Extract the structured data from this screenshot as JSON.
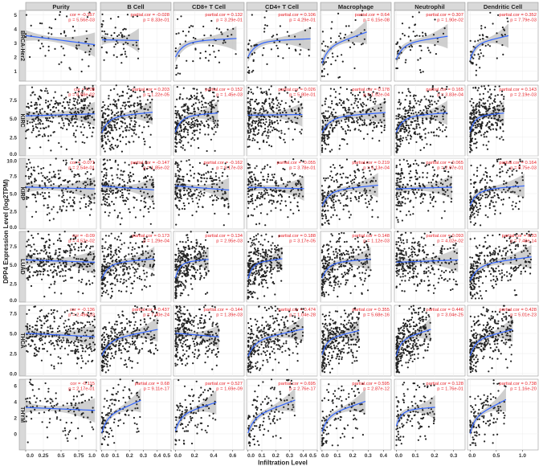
{
  "chart_data": {
    "type": "scatter",
    "ylabel": "DPP4 Expression Level (log2TPM)",
    "xlabel": "Infiltration Level",
    "grid": true,
    "columns": [
      {
        "name": "Purity",
        "xlim": [
          0,
          1
        ],
        "ticks": [
          "0.0",
          "0.25",
          "0.5",
          "0.75",
          "1.0"
        ],
        "tickvals": [
          0,
          0.25,
          0.5,
          0.75,
          1.0
        ]
      },
      {
        "name": "B Cell",
        "xlim": [
          -0.01,
          0.5
        ],
        "ticks": [
          "0.0",
          "0.1",
          "0.2",
          "0.3",
          "0.4",
          "0.5"
        ],
        "tickvals": [
          0,
          0.1,
          0.2,
          0.3,
          0.4,
          0.5
        ]
      },
      {
        "name": "CD8+ T Cell",
        "xlim": [
          -0.02,
          0.72
        ],
        "ticks": [
          "0.0",
          "0.2",
          "0.4",
          "0.6"
        ],
        "tickvals": [
          0,
          0.2,
          0.4,
          0.6
        ]
      },
      {
        "name": "CD4+ T Cell",
        "xlim": [
          -0.01,
          0.5
        ],
        "ticks": [
          "0.0",
          "0.1",
          "0.2",
          "0.3",
          "0.4",
          "0.5"
        ],
        "tickvals": [
          0,
          0.1,
          0.2,
          0.3,
          0.4,
          0.5
        ]
      },
      {
        "name": "Macrophage",
        "xlim": [
          -0.01,
          0.45
        ],
        "ticks": [
          "0.0",
          "0.1",
          "0.2",
          "0.3",
          "0.4"
        ],
        "tickvals": [
          0,
          0.1,
          0.2,
          0.3,
          0.4
        ]
      },
      {
        "name": "Neutrophil",
        "xlim": [
          -0.01,
          0.36
        ],
        "ticks": [
          "0.0",
          "0.1",
          "0.2",
          "0.3"
        ],
        "tickvals": [
          0,
          0.1,
          0.2,
          0.3
        ]
      },
      {
        "name": "Dendritic Cell",
        "xlim": [
          -0.05,
          1.3
        ],
        "ticks": [
          "0.0",
          "0.5",
          "1.0"
        ],
        "tickvals": [
          0,
          0.5,
          1.0
        ]
      }
    ],
    "rows": [
      {
        "name": "BRCA-Her2",
        "ylim": [
          0.3,
          5.3
        ],
        "ticks": [
          "1",
          "2",
          "3",
          "4",
          "5"
        ],
        "tickvals": [
          1,
          2,
          3,
          4,
          5
        ],
        "stats": [
          [
            "cor = -0.357",
            "p = 5.56e-03"
          ],
          [
            "partial.cor = -0.028",
            "p = 8.33e-01"
          ],
          [
            "partial.cor = 0.132",
            "p = 3.29e-01"
          ],
          [
            "partial.cor = 0.106",
            "p = 4.29e-01"
          ],
          [
            "partial.cor = 0.64",
            "p = 6.15e-08"
          ],
          [
            "partial.cor = 0.307",
            "p = 1.90e-02"
          ],
          [
            "partial.cor = 0.352",
            "p = 7.79e-03"
          ]
        ]
      },
      {
        "name": "KIRC",
        "ylim": [
          0,
          9.5
        ],
        "ticks": [
          "0.0",
          "2.5",
          "5.0",
          "7.5"
        ],
        "tickvals": [
          0,
          2.5,
          5,
          7.5
        ],
        "stats": [
          [
            "cor = 0.08",
            "p = 8.58e-02"
          ],
          [
            "partial.cor = 0.203",
            "p = 1.22e-05"
          ],
          [
            "partial.cor = 0.152",
            "p = 1.45e-03"
          ],
          [
            "partial.cor = 0.026",
            "p = 5.80e-01"
          ],
          [
            "partial.cor = 0.178",
            "p = 1.52e-04"
          ],
          [
            "partial.cor = 0.165",
            "p = 3.83e-04"
          ],
          [
            "partial.cor = 0.143",
            "p = 2.19e-03"
          ]
        ]
      },
      {
        "name": "KIRP",
        "ylim": [
          0,
          10
        ],
        "ticks": [
          "0.0",
          "2.5",
          "5.0",
          "7.5",
          "10.0"
        ],
        "tickvals": [
          0,
          2.5,
          5,
          7.5,
          10
        ],
        "stats": [
          [
            "cor = -0.071",
            "p = 2.54e-01"
          ],
          [
            "partial.cor = -0.147",
            "p = 1.85e-02"
          ],
          [
            "partial.cor = -0.162",
            "p = 9.17e-03"
          ],
          [
            "partial.cor = -0.055",
            "p = 3.78e-01"
          ],
          [
            "partial.cor = 0.219",
            "p = 5.13e-04"
          ],
          [
            "partial.cor = 0.065",
            "p = 2.97e-01"
          ],
          [
            "partial.cor = 0.164",
            "p = 8.75e-03"
          ]
        ]
      },
      {
        "name": "LUAD",
        "ylim": [
          0,
          9.5
        ],
        "ticks": [
          "0.0",
          "2.5",
          "5.0",
          "7.5"
        ],
        "tickvals": [
          0,
          2.5,
          5,
          7.5
        ],
        "stats": [
          [
            "cor = -0.09",
            "p = 4.52e-02"
          ],
          [
            "partial.cor = 0.173",
            "p = 1.29e-04"
          ],
          [
            "partial.cor = 0.134",
            "p = 2.95e-03"
          ],
          [
            "partial.cor = 0.188",
            "p = 3.17e-05"
          ],
          [
            "partial.cor = 0.148",
            "p = 1.12e-03"
          ],
          [
            "partial.cor = 0.093",
            "p = 4.02e-02"
          ],
          [
            "partial.cor = 0.33",
            "p = 7.48e-14"
          ]
        ]
      },
      {
        "name": "THCA",
        "ylim": [
          -0.3,
          8.5
        ],
        "ticks": [
          "0.0",
          "2.5",
          "5.0",
          "7.5"
        ],
        "tickvals": [
          0,
          2.5,
          5,
          7.5
        ],
        "stats": [
          [
            "cor = -0.136",
            "p = 2.49e-03"
          ],
          [
            "partial.cor = 0.437",
            "p = 7.40e-24"
          ],
          [
            "partial.cor = -0.144",
            "p = 1.39e-03"
          ],
          [
            "partial.cor = 0.474",
            "p = 1.04e-28"
          ],
          [
            "partial.cor = 0.355",
            "p = 5.68e-16"
          ],
          [
            "partial.cor = 0.446",
            "p = 3.04e-25"
          ],
          [
            "partial.cor = 0.428",
            "p = 5.01e-23"
          ]
        ]
      },
      {
        "name": "THYM",
        "ylim": [
          -2,
          6.8
        ],
        "ticks": [
          "0",
          "2",
          "4",
          "6"
        ],
        "tickvals": [
          0,
          2,
          4,
          6
        ],
        "stats": [
          [
            "cor = -0.115",
            "p = 2.17e-01"
          ],
          [
            "partial.cor = 0.68",
            "p = 9.11e-17"
          ],
          [
            "partial.cor = 0.527",
            "p = 1.69e-09"
          ],
          [
            "partial.cor = 0.695",
            "p = 2.76e-17"
          ],
          [
            "partial.cor = 0.595",
            "p = 2.87e-12"
          ],
          [
            "partial.cor = 0.128",
            "p = 1.76e-01"
          ],
          [
            "partial.cor = 0.738",
            "p = 1.16e-20"
          ]
        ]
      }
    ],
    "colors": {
      "points": "#222222",
      "fit": "#3366ff",
      "band": "#bfbfbf",
      "stats": "#e8232a",
      "strip": "#d9d9d9"
    }
  }
}
